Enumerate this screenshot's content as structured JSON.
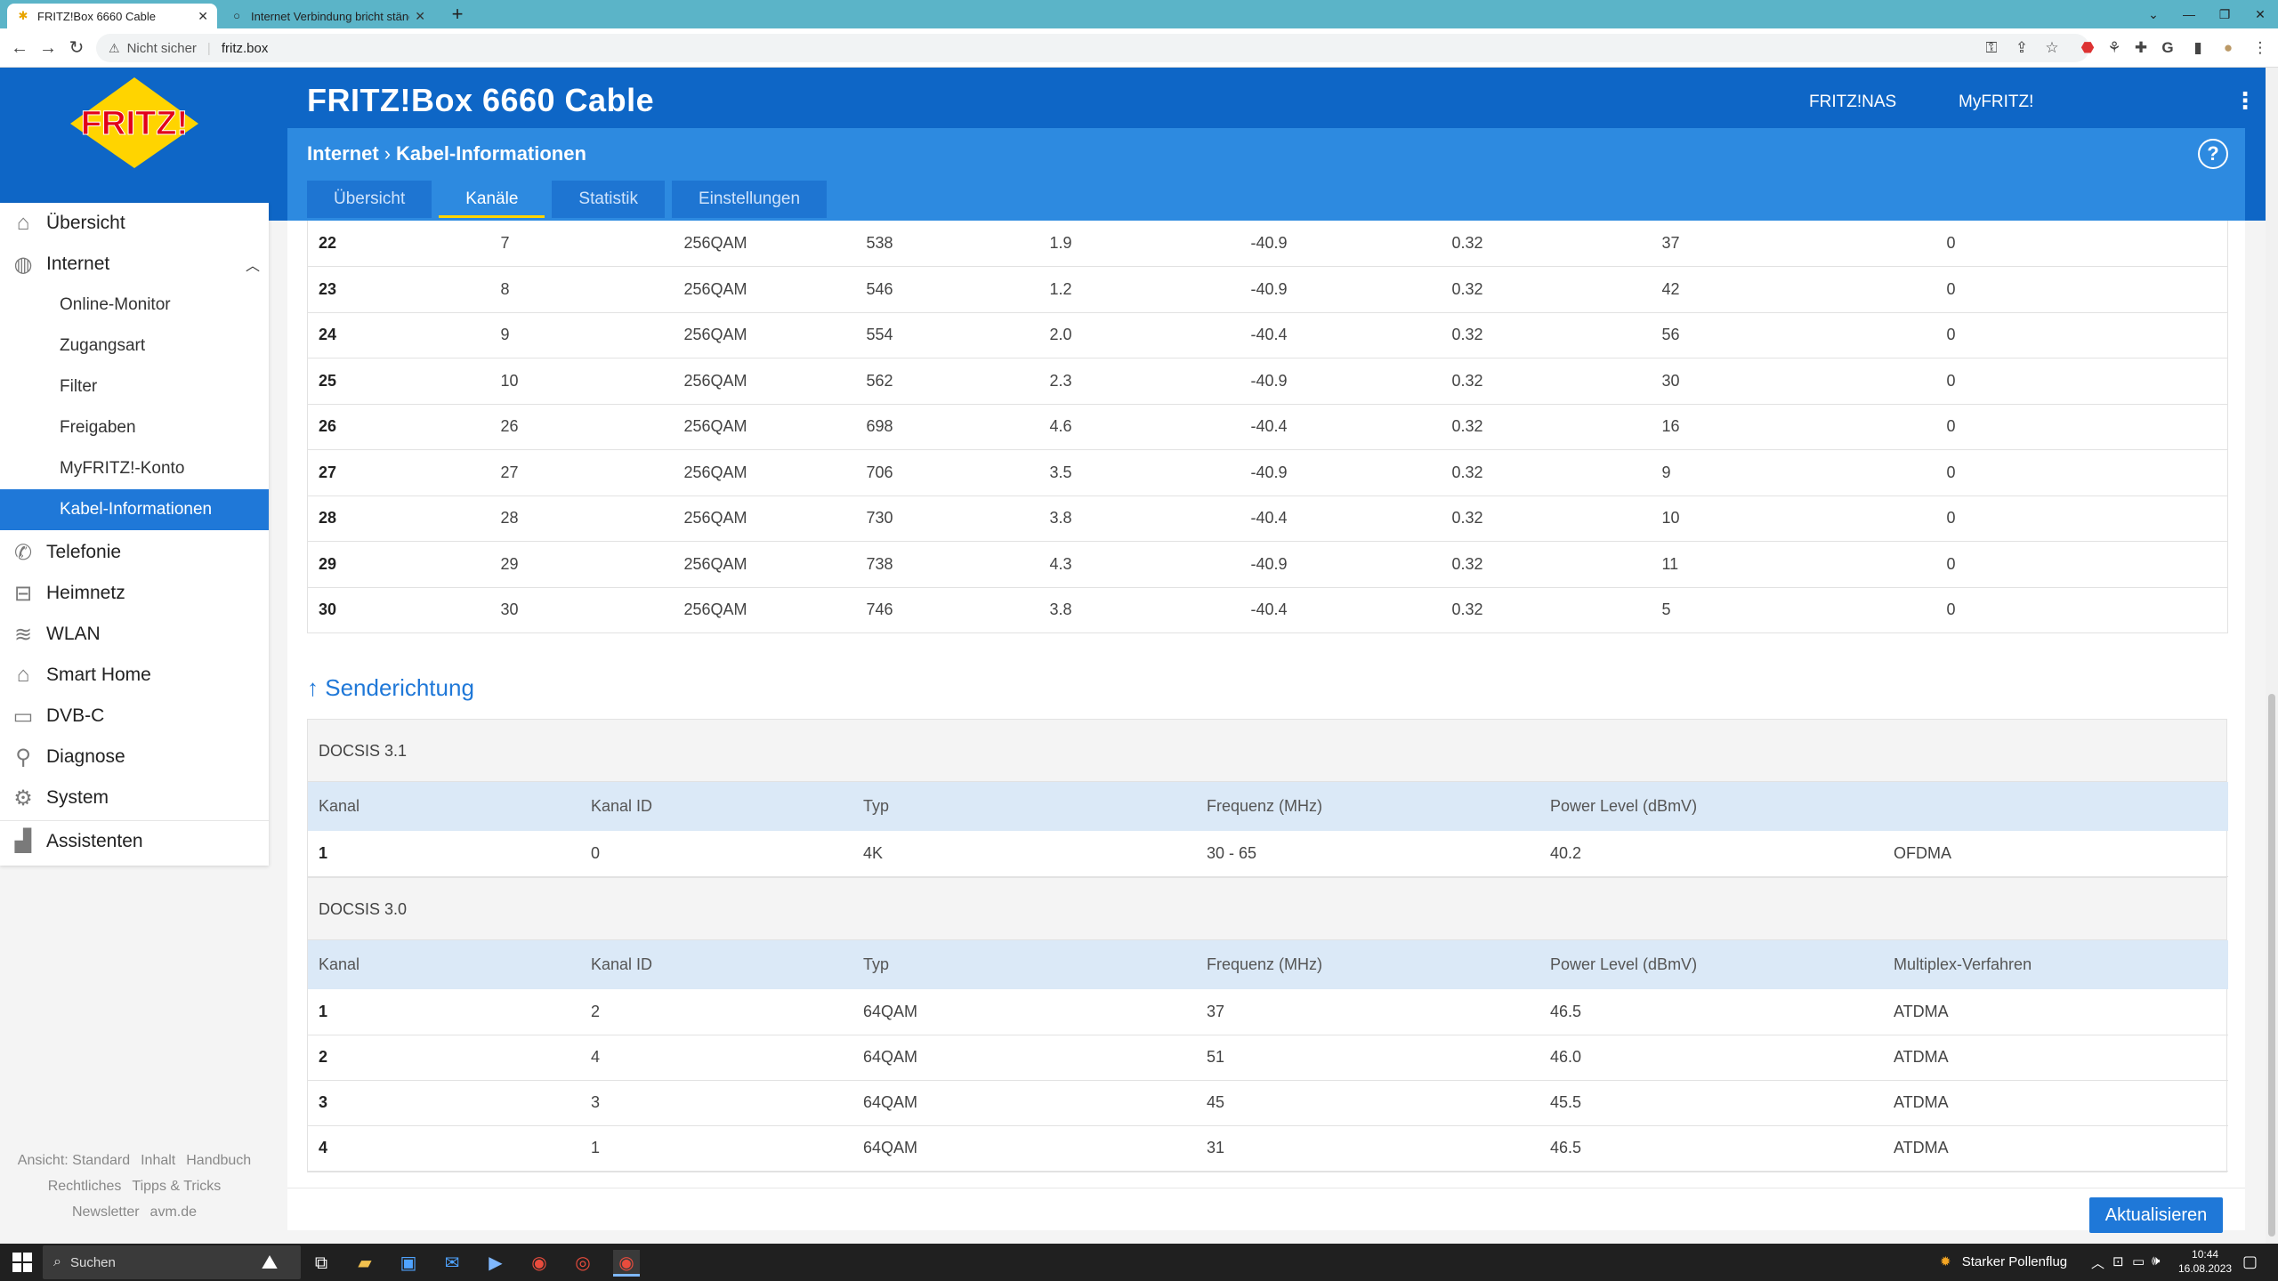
{
  "browser": {
    "tabs": [
      {
        "title": "FRITZ!Box 6660 Cable",
        "active": true
      },
      {
        "title": "Internet Verbindung bricht ständ",
        "active": false
      }
    ],
    "security_label": "Nicht sicher",
    "url": "fritz.box"
  },
  "header": {
    "title": "FRITZ!Box 6660 Cable",
    "links": [
      "FRITZ!NAS",
      "MyFRITZ!"
    ],
    "breadcrumb": [
      "Internet",
      "Kabel-Informationen"
    ],
    "help": "?",
    "logo_text": "FRITZ!"
  },
  "tabs": [
    {
      "label": "Übersicht",
      "active": false
    },
    {
      "label": "Kanäle",
      "active": true
    },
    {
      "label": "Statistik",
      "active": false
    },
    {
      "label": "Einstellungen",
      "active": false
    }
  ],
  "sidebar": {
    "items": [
      {
        "label": "Übersicht",
        "icon": "home-icon"
      },
      {
        "label": "Internet",
        "icon": "globe-icon",
        "expanded": true
      },
      {
        "label": "Telefonie",
        "icon": "phone-icon"
      },
      {
        "label": "Heimnetz",
        "icon": "network-icon"
      },
      {
        "label": "WLAN",
        "icon": "wifi-icon"
      },
      {
        "label": "Smart Home",
        "icon": "smart-home-icon"
      },
      {
        "label": "DVB-C",
        "icon": "tv-icon"
      },
      {
        "label": "Diagnose",
        "icon": "diagnose-icon"
      },
      {
        "label": "System",
        "icon": "gear-icon"
      },
      {
        "label": "Assistenten",
        "icon": "wizard-icon"
      }
    ],
    "subitems": [
      "Online-Monitor",
      "Zugangsart",
      "Filter",
      "Freigaben",
      "MyFRITZ!-Konto",
      "Kabel-Informationen"
    ],
    "active_subitem": "Kabel-Informationen",
    "footer": [
      "Ansicht: Standard",
      "Inhalt",
      "Handbuch",
      "Rechtliches",
      "Tipps & Tricks",
      "Newsletter",
      "avm.de"
    ]
  },
  "downstream_rows": [
    [
      "22",
      "7",
      "256QAM",
      "538",
      "1.9",
      "-40.9",
      "0.32",
      "37",
      "0"
    ],
    [
      "23",
      "8",
      "256QAM",
      "546",
      "1.2",
      "-40.9",
      "0.32",
      "42",
      "0"
    ],
    [
      "24",
      "9",
      "256QAM",
      "554",
      "2.0",
      "-40.4",
      "0.32",
      "56",
      "0"
    ],
    [
      "25",
      "10",
      "256QAM",
      "562",
      "2.3",
      "-40.9",
      "0.32",
      "30",
      "0"
    ],
    [
      "26",
      "26",
      "256QAM",
      "698",
      "4.6",
      "-40.4",
      "0.32",
      "16",
      "0"
    ],
    [
      "27",
      "27",
      "256QAM",
      "706",
      "3.5",
      "-40.9",
      "0.32",
      "9",
      "0"
    ],
    [
      "28",
      "28",
      "256QAM",
      "730",
      "3.8",
      "-40.4",
      "0.32",
      "10",
      "0"
    ],
    [
      "29",
      "29",
      "256QAM",
      "738",
      "4.3",
      "-40.9",
      "0.32",
      "11",
      "0"
    ],
    [
      "30",
      "30",
      "256QAM",
      "746",
      "3.8",
      "-40.4",
      "0.32",
      "5",
      "0"
    ]
  ],
  "senderichtung": {
    "heading": "↑ Senderichtung",
    "docsis31": {
      "title": "DOCSIS 3.1",
      "columns": [
        "Kanal",
        "Kanal ID",
        "Typ",
        "Frequenz (MHz)",
        "Power Level (dBmV)",
        ""
      ],
      "rows": [
        [
          "1",
          "0",
          "4K",
          "30 - 65",
          "40.2",
          "OFDMA"
        ]
      ]
    },
    "docsis30": {
      "title": "DOCSIS 3.0",
      "columns": [
        "Kanal",
        "Kanal ID",
        "Typ",
        "Frequenz (MHz)",
        "Power Level (dBmV)",
        "Multiplex-Verfahren"
      ],
      "rows": [
        [
          "1",
          "2",
          "64QAM",
          "37",
          "46.5",
          "ATDMA"
        ],
        [
          "2",
          "4",
          "64QAM",
          "51",
          "46.0",
          "ATDMA"
        ],
        [
          "3",
          "3",
          "64QAM",
          "45",
          "45.5",
          "ATDMA"
        ],
        [
          "4",
          "1",
          "64QAM",
          "31",
          "46.5",
          "ATDMA"
        ]
      ]
    }
  },
  "refresh_label": "Aktualisieren",
  "taskbar": {
    "search_placeholder": "Suchen",
    "weather": "Starker Pollenflug",
    "time": "10:44",
    "date": "16.08.2023"
  },
  "colors": {
    "header_dark": "#0e66c6",
    "header_light": "#2d8ae0",
    "active_item": "#1f78d8",
    "tab_underline": "#ffd400"
  }
}
